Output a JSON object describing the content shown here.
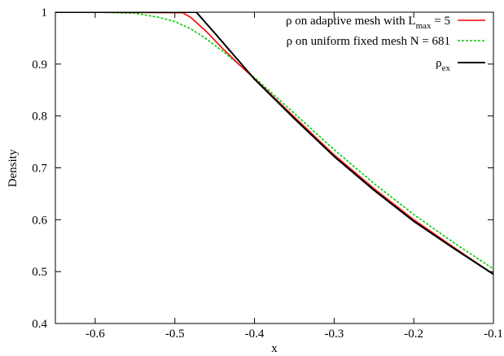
{
  "chart_data": {
    "type": "line",
    "xlabel": "x",
    "ylabel": "Density",
    "xlim": [
      -0.65,
      -0.1
    ],
    "ylim": [
      0.4,
      1.0
    ],
    "x_ticks": [
      -0.6,
      -0.5,
      -0.4,
      -0.3,
      -0.2,
      -0.1
    ],
    "x_tick_labels": [
      "-0.6",
      "-0.5",
      "-0.4",
      "-0.3",
      "-0.2",
      "-0.1"
    ],
    "y_ticks": [
      0.4,
      0.5,
      0.6,
      0.7,
      0.8,
      0.9,
      1.0
    ],
    "y_tick_labels": [
      "0.4",
      "0.5",
      "0.6",
      "0.7",
      "0.8",
      "0.9",
      "1"
    ],
    "grid": false,
    "legend_position": "top-right",
    "series": [
      {
        "name": "ρ on adaptive mesh with L_max = 5",
        "legend": {
          "prefix": "ρ on adaptive mesh with L",
          "sub": "max",
          "suffix": " =  5"
        },
        "color": "#ff0000",
        "dash": "solid",
        "x": [
          -0.65,
          -0.49,
          -0.48,
          -0.46,
          -0.44,
          -0.42,
          -0.4,
          -0.35,
          -0.3,
          -0.25,
          -0.2,
          -0.15,
          -0.1
        ],
        "y": [
          1.0,
          0.999,
          0.99,
          0.962,
          0.93,
          0.9,
          0.872,
          0.798,
          0.725,
          0.66,
          0.6,
          0.547,
          0.495
        ]
      },
      {
        "name": "ρ on uniform fixed mesh N = 681",
        "legend": {
          "prefix": "ρ on  uniform fixed mesh N =  681",
          "sub": "",
          "suffix": ""
        },
        "color": "#00cc00",
        "dash": "dashed",
        "x": [
          -0.65,
          -0.6,
          -0.55,
          -0.52,
          -0.5,
          -0.48,
          -0.46,
          -0.44,
          -0.42,
          -0.4,
          -0.35,
          -0.3,
          -0.25,
          -0.2,
          -0.15,
          -0.1
        ],
        "y": [
          1.0,
          1.0,
          0.998,
          0.99,
          0.982,
          0.968,
          0.948,
          0.925,
          0.9,
          0.874,
          0.805,
          0.735,
          0.67,
          0.61,
          0.556,
          0.505
        ]
      },
      {
        "name": "ρ_ex",
        "legend": {
          "prefix": "ρ",
          "sub": "ex",
          "suffix": ""
        },
        "color": "#000000",
        "dash": "solid",
        "x": [
          -0.65,
          -0.473,
          -0.45,
          -0.4,
          -0.35,
          -0.3,
          -0.25,
          -0.2,
          -0.15,
          -0.1
        ],
        "y": [
          1.0,
          1.0,
          0.96,
          0.871,
          0.795,
          0.722,
          0.657,
          0.597,
          0.545,
          0.495
        ]
      }
    ]
  }
}
